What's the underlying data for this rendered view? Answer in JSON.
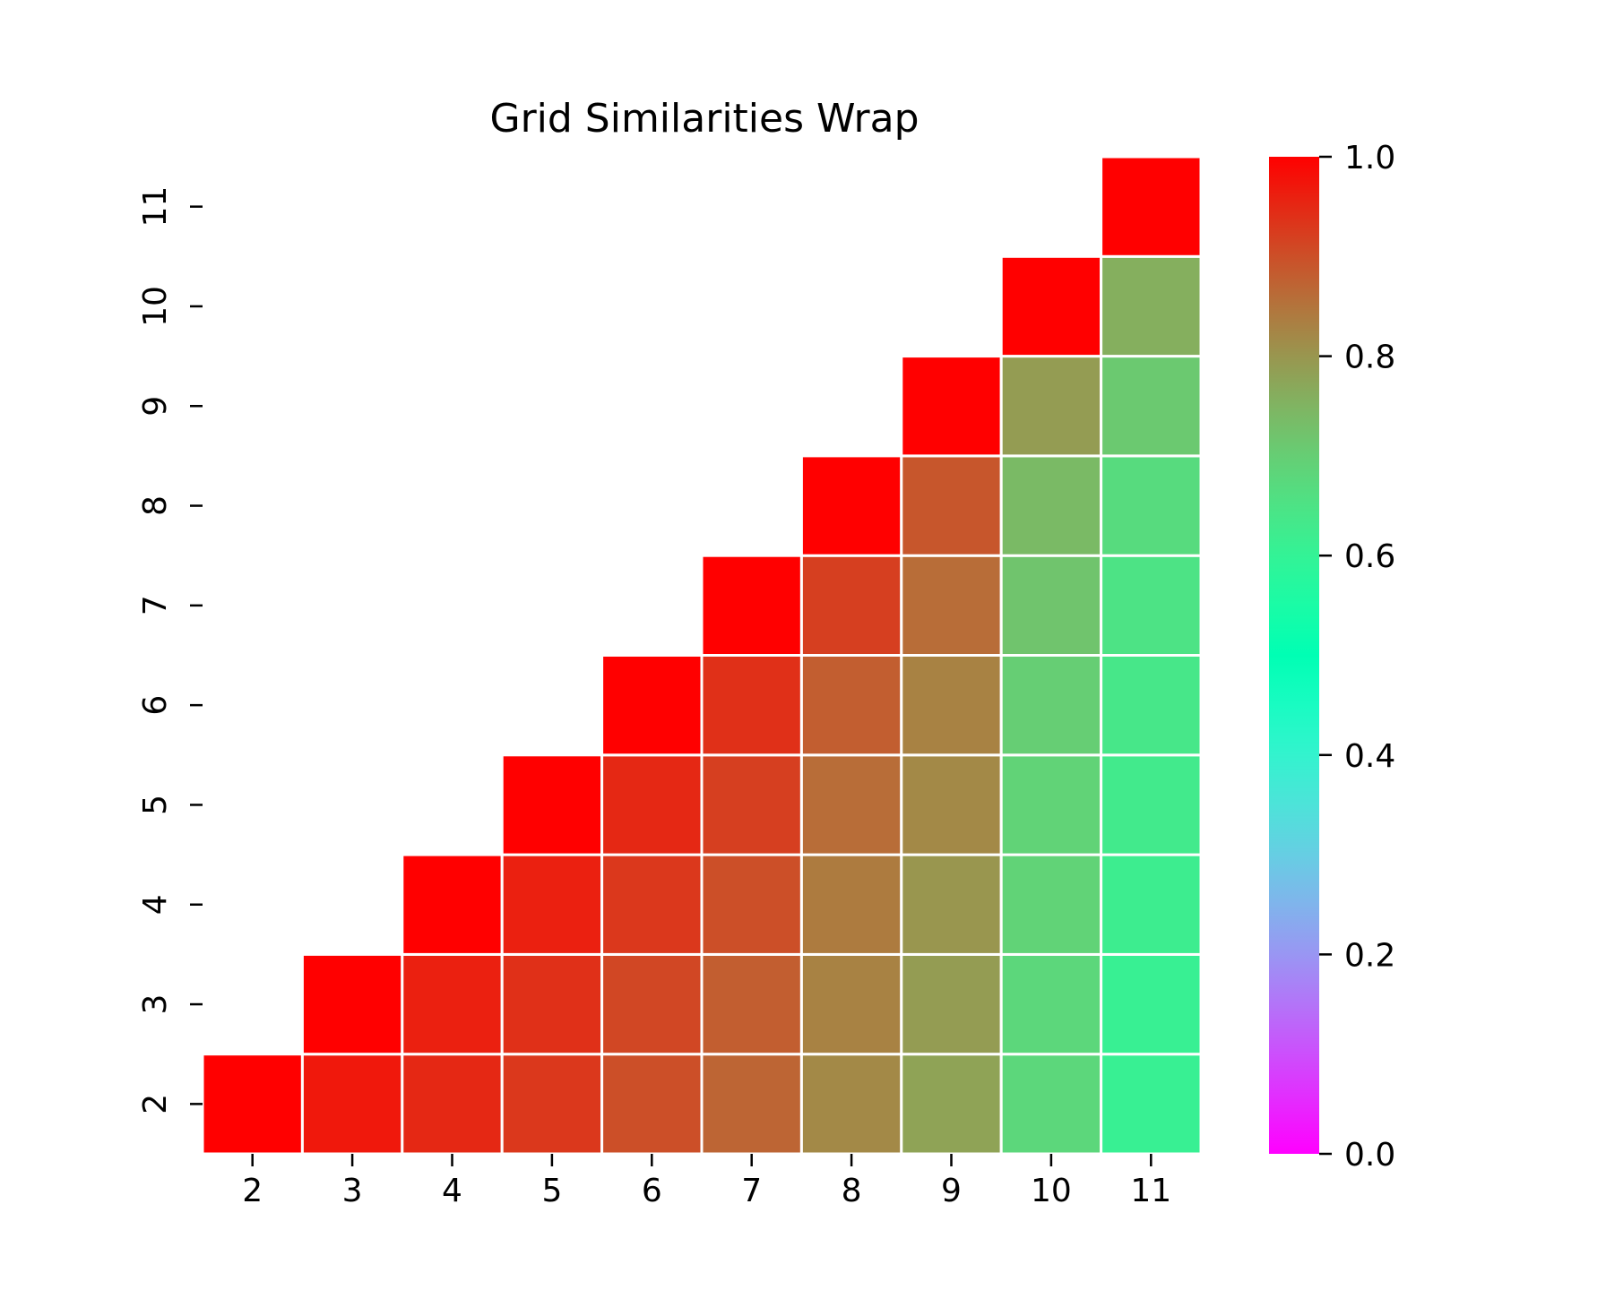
{
  "chart_data": {
    "type": "heatmap",
    "title": "Grid Similarities Wrap",
    "xlabel": "",
    "ylabel": "",
    "x_categories": [
      "2",
      "3",
      "4",
      "5",
      "6",
      "7",
      "8",
      "9",
      "10",
      "11"
    ],
    "y_categories": [
      "2",
      "3",
      "4",
      "5",
      "6",
      "7",
      "8",
      "9",
      "10",
      "11"
    ],
    "mask": "upper-left triangle empty (cell shown only where column >= row)",
    "colormap": "rainbow",
    "vmin": 0.0,
    "vmax": 1.0,
    "colorbar_ticks": [
      "0.0",
      "0.2",
      "0.4",
      "0.6",
      "0.8",
      "1.0"
    ],
    "colorbar_tick_values": [
      0.0,
      0.2,
      0.4,
      0.6,
      0.8,
      1.0
    ],
    "values": [
      [
        1.0,
        0.97,
        0.95,
        0.93,
        0.9,
        0.87,
        0.82,
        0.78,
        0.68,
        0.61
      ],
      [
        null,
        1.0,
        0.96,
        0.94,
        0.91,
        0.88,
        0.83,
        0.79,
        0.68,
        0.61
      ],
      [
        null,
        null,
        1.0,
        0.96,
        0.93,
        0.9,
        0.84,
        0.8,
        0.69,
        0.62
      ],
      [
        null,
        null,
        null,
        1.0,
        0.95,
        0.92,
        0.86,
        0.82,
        0.69,
        0.63
      ],
      [
        null,
        null,
        null,
        null,
        1.0,
        0.94,
        0.88,
        0.83,
        0.7,
        0.64
      ],
      [
        null,
        null,
        null,
        null,
        null,
        1.0,
        0.92,
        0.86,
        0.72,
        0.65
      ],
      [
        null,
        null,
        null,
        null,
        null,
        null,
        1.0,
        0.89,
        0.74,
        0.67
      ],
      [
        null,
        null,
        null,
        null,
        null,
        null,
        null,
        1.0,
        0.79,
        0.71
      ],
      [
        null,
        null,
        null,
        null,
        null,
        null,
        null,
        null,
        1.0,
        0.76
      ],
      [
        null,
        null,
        null,
        null,
        null,
        null,
        null,
        null,
        null,
        1.0
      ]
    ],
    "cell_border_color": "#ffffff",
    "grid": false
  }
}
